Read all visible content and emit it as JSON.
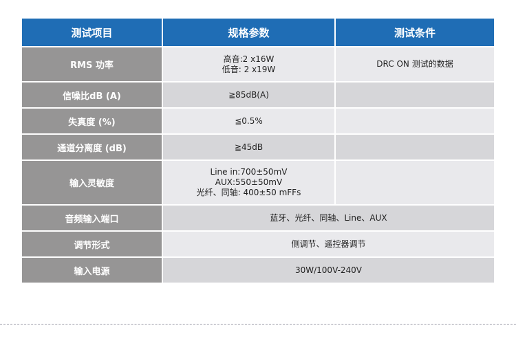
{
  "header": [
    "测试项目",
    "规格参数",
    "测试条件"
  ],
  "rows": [
    {
      "label": "RMS 功率",
      "spec": [
        "高音:2 x16W",
        "低音: 2 x19W"
      ],
      "condition": "DRC ON 测试的数据"
    },
    {
      "label": "信噪比dB (A)",
      "spec": [
        "≧85dB(A)"
      ],
      "condition": ""
    },
    {
      "label": "失真度 (%)",
      "spec": [
        "≦0.5%"
      ],
      "condition": ""
    },
    {
      "label": "通道分离度 (dB)",
      "spec": [
        "≧45dB"
      ],
      "condition": ""
    },
    {
      "label": "输入灵敏度",
      "spec": [
        "Line in:700±50mV",
        "AUX:550±50mV",
        "光纤、同轴: 400±50 mFFs"
      ],
      "condition": ""
    },
    {
      "label": "音频输入端口",
      "merged": "蓝牙、光纤、同轴、Line、AUX"
    },
    {
      "label": "调节形式",
      "merged": "侧调节、遥控器调节"
    },
    {
      "label": "输入电源",
      "merged": "30W/100V-240V"
    }
  ]
}
